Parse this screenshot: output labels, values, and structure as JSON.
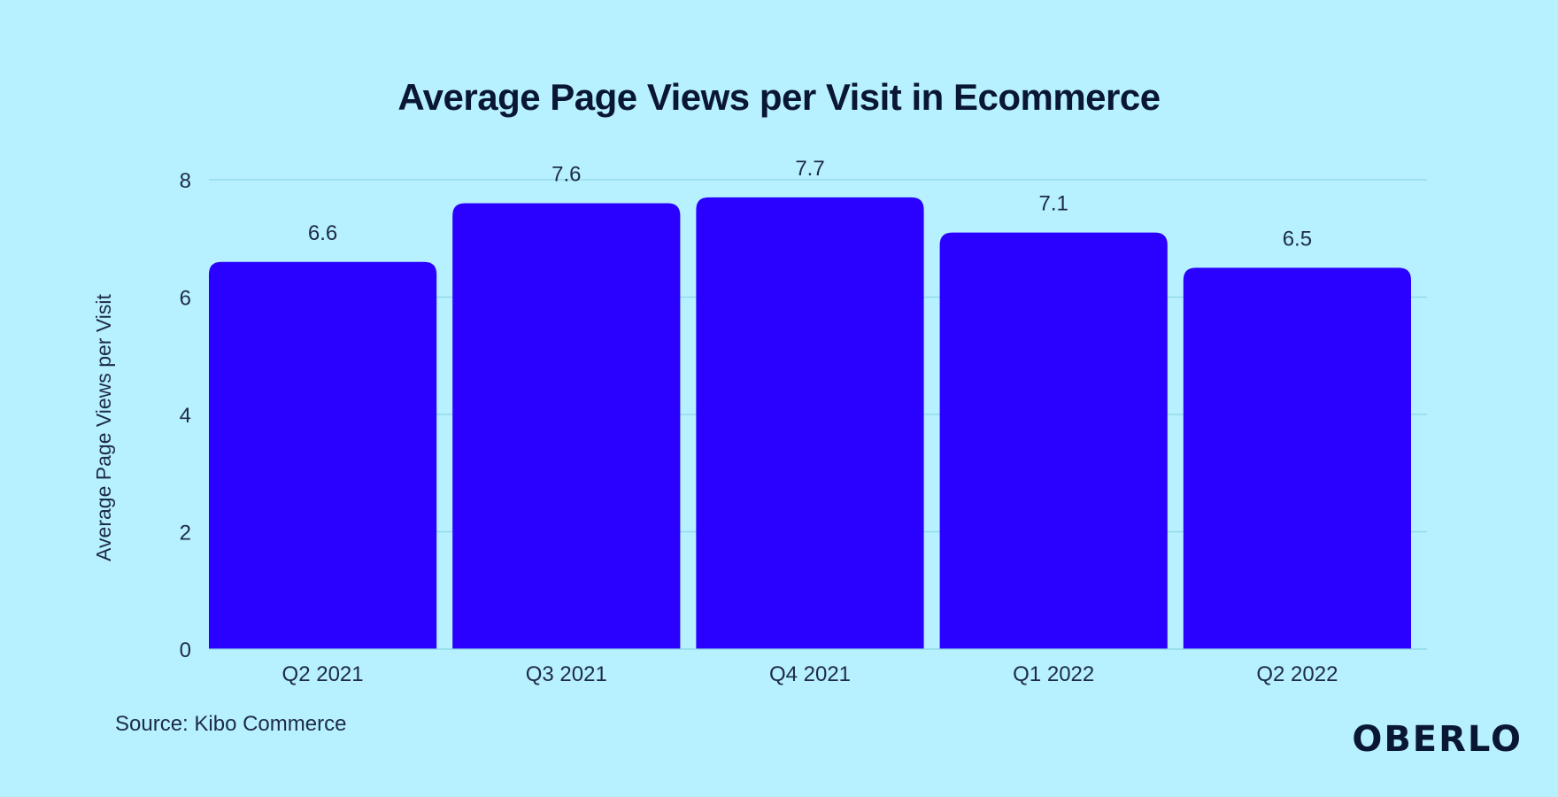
{
  "chart_data": {
    "type": "bar",
    "title": "Average Page Views per Visit in Ecommerce",
    "categories": [
      "Q2 2021",
      "Q3 2021",
      "Q4 2021",
      "Q1 2022",
      "Q2 2022"
    ],
    "values": [
      6.6,
      7.6,
      7.7,
      7.1,
      6.5
    ],
    "value_labels": [
      "6.6",
      "7.6",
      "7.7",
      "7.1",
      "6.5"
    ],
    "xlabel": "",
    "ylabel": "Average Page Views per Visit",
    "ylim": [
      0,
      8
    ],
    "yticks": [
      0,
      2,
      4,
      6,
      8
    ],
    "grid": true,
    "bar_color": "#2a00ff",
    "grid_color": "#8fd6e6"
  },
  "source": "Source: Kibo Commerce",
  "brand": "OBERLO",
  "background_color": "#b7f0ff"
}
